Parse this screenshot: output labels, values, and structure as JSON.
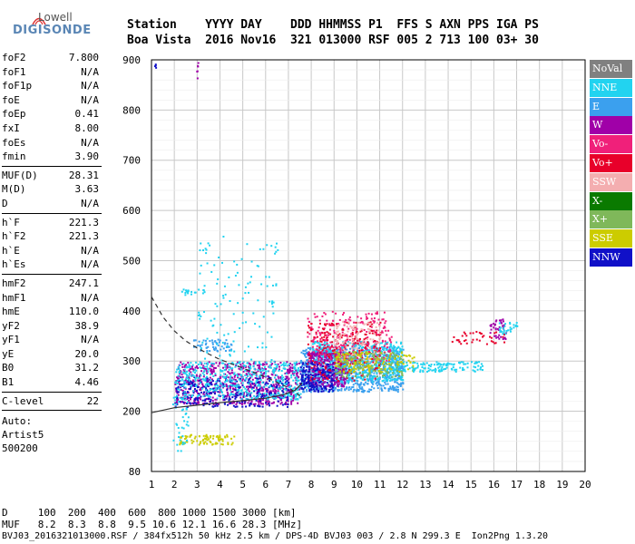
{
  "logo": {
    "line1": "Lowell",
    "line2": "DIGISONDE"
  },
  "header": {
    "row1": "Station    YYYY DAY    DDD HHMMSS P1  FFS S AXN PPS IGA PS",
    "row2": "Boa Vista  2016 Nov16  321 013000 RSF 005 2 713 100 03+ 30"
  },
  "params": {
    "group1": [
      {
        "name": "foF2",
        "value": "7.800"
      },
      {
        "name": "foF1",
        "value": "N/A"
      },
      {
        "name": "foF1p",
        "value": "N/A"
      },
      {
        "name": "foE",
        "value": "N/A"
      },
      {
        "name": "foEp",
        "value": "0.41"
      },
      {
        "name": "fxI",
        "value": "8.00"
      },
      {
        "name": "foEs",
        "value": "N/A"
      },
      {
        "name": "fmin",
        "value": "3.90"
      }
    ],
    "group2": [
      {
        "name": "MUF(D)",
        "value": "28.31"
      },
      {
        "name": "M(D)",
        "value": "3.63"
      },
      {
        "name": "D",
        "value": "N/A"
      }
    ],
    "group3": [
      {
        "name": "h`F",
        "value": "221.3"
      },
      {
        "name": "h`F2",
        "value": "221.3"
      },
      {
        "name": "h`E",
        "value": "N/A"
      },
      {
        "name": "h`Es",
        "value": "N/A"
      }
    ],
    "group4": [
      {
        "name": "hmF2",
        "value": "247.1"
      },
      {
        "name": "hmF1",
        "value": "N/A"
      },
      {
        "name": "hmE",
        "value": "110.0"
      },
      {
        "name": "yF2",
        "value": "38.9"
      },
      {
        "name": "yF1",
        "value": "N/A"
      },
      {
        "name": "yE",
        "value": "20.0"
      },
      {
        "name": "B0",
        "value": "31.2"
      },
      {
        "name": "B1",
        "value": "4.46"
      }
    ],
    "group5": [
      {
        "name": "C-level",
        "value": "22"
      }
    ],
    "auto_label": "Auto:",
    "auto_value": "Artist5",
    "auto_code": "500200"
  },
  "legend": [
    {
      "label": "NoVal",
      "color": "#808080"
    },
    {
      "label": "NNE",
      "color": "#22d3f0"
    },
    {
      "label": "E",
      "color": "#3ba0ee"
    },
    {
      "label": "W",
      "color": "#a000a8"
    },
    {
      "label": "Vo-",
      "color": "#f0207a"
    },
    {
      "label": "Vo+",
      "color": "#e8002a"
    },
    {
      "label": "SSW",
      "color": "#f4aeb0"
    },
    {
      "label": "X-",
      "color": "#0a7a00"
    },
    {
      "label": "X+",
      "color": "#7fb85a"
    },
    {
      "label": "SSE",
      "color": "#cccc00"
    },
    {
      "label": "NNW",
      "color": "#1010c8"
    }
  ],
  "footer": {
    "line1": "D     100  200  400  600  800 1000 1500 3000 [km]",
    "line2": "MUF   8.2  8.3  8.8  9.5 10.6 12.1 16.6 28.3 [MHz]",
    "line3": "BVJ03_2016321013000.RSF / 384fx512h 50 kHz 2.5 km / DPS-4D BVJ03 003 / 2.8 N 299.3 E  Ion2Png 1.3.20"
  },
  "chart_data": {
    "type": "scatter",
    "xlabel": "",
    "ylabel": "",
    "xlim": [
      1,
      20
    ],
    "ylim": [
      80,
      900
    ],
    "xticks": [
      1,
      2,
      3,
      4,
      5,
      6,
      7,
      8,
      9,
      10,
      11,
      12,
      13,
      14,
      15,
      16,
      17,
      18,
      19,
      20
    ],
    "yticks": [
      80,
      200,
      300,
      400,
      500,
      600,
      700,
      800,
      900
    ],
    "clusters": [
      {
        "series": "W",
        "xr": [
          2.0,
          7.5
        ],
        "yr": [
          215,
          300
        ],
        "n": 700
      },
      {
        "series": "NNW",
        "xr": [
          2.0,
          7.0
        ],
        "yr": [
          210,
          270
        ],
        "n": 300
      },
      {
        "series": "NNE",
        "xr": [
          2.0,
          7.5
        ],
        "yr": [
          225,
          300
        ],
        "n": 450
      },
      {
        "series": "E",
        "xr": [
          7.5,
          12.0
        ],
        "yr": [
          240,
          330
        ],
        "n": 900
      },
      {
        "series": "NNE",
        "xr": [
          8.0,
          12.0
        ],
        "yr": [
          260,
          340
        ],
        "n": 600
      },
      {
        "series": "W",
        "xr": [
          7.8,
          9.5
        ],
        "yr": [
          250,
          320
        ],
        "n": 260
      },
      {
        "series": "NNW",
        "xr": [
          7.5,
          9.0
        ],
        "yr": [
          240,
          300
        ],
        "n": 180
      },
      {
        "series": "Vo-",
        "xr": [
          7.8,
          11.5
        ],
        "yr": [
          300,
          400
        ],
        "n": 280
      },
      {
        "series": "Vo+",
        "xr": [
          7.8,
          11.0
        ],
        "yr": [
          260,
          380
        ],
        "n": 220
      },
      {
        "series": "SSW",
        "xr": [
          9.0,
          11.0
        ],
        "yr": [
          300,
          380
        ],
        "n": 120
      },
      {
        "series": "X+",
        "xr": [
          9.0,
          12.0
        ],
        "yr": [
          270,
          320
        ],
        "n": 160
      },
      {
        "series": "SSE",
        "xr": [
          9.0,
          12.5
        ],
        "yr": [
          280,
          320
        ],
        "n": 120
      },
      {
        "series": "NNE",
        "xr": [
          12.0,
          15.5
        ],
        "yr": [
          280,
          300
        ],
        "n": 120
      },
      {
        "series": "Vo+",
        "xr": [
          14.0,
          16.5
        ],
        "yr": [
          335,
          360
        ],
        "n": 40
      },
      {
        "series": "W",
        "xr": [
          15.8,
          16.5
        ],
        "yr": [
          345,
          385
        ],
        "n": 40
      },
      {
        "series": "NNE",
        "xr": [
          16.2,
          17.0
        ],
        "yr": [
          355,
          380
        ],
        "n": 30
      },
      {
        "series": "SSE",
        "xr": [
          2.2,
          4.6
        ],
        "yr": [
          135,
          155
        ],
        "n": 90
      },
      {
        "series": "NNE",
        "xr": [
          1.9,
          2.6
        ],
        "yr": [
          120,
          230
        ],
        "n": 40
      },
      {
        "series": "E",
        "xr": [
          2.8,
          4.5
        ],
        "yr": [
          320,
          345
        ],
        "n": 60
      },
      {
        "series": "NNE",
        "xr": [
          3.0,
          6.5
        ],
        "yr": [
          300,
          560
        ],
        "n": 120
      },
      {
        "series": "NNE",
        "xr": [
          2.3,
          3.5
        ],
        "yr": [
          430,
          445
        ],
        "n": 20
      },
      {
        "series": "W",
        "xr": [
          2.8,
          3.2
        ],
        "yr": [
          850,
          900
        ],
        "n": 6
      },
      {
        "series": "NNW",
        "xr": [
          1.0,
          1.2
        ],
        "yr": [
          880,
          895
        ],
        "n": 4
      }
    ],
    "lines": [
      {
        "name": "O-trace (solid)",
        "style": "solid",
        "points": [
          [
            1.0,
            197
          ],
          [
            2.0,
            207
          ],
          [
            3.0,
            212
          ],
          [
            4.0,
            217
          ],
          [
            5.0,
            221
          ],
          [
            6.0,
            226
          ],
          [
            6.8,
            233
          ],
          [
            7.3,
            242
          ],
          [
            7.6,
            256
          ]
        ]
      },
      {
        "name": "model (dashed)",
        "style": "dashed",
        "points": [
          [
            1.0,
            428
          ],
          [
            1.5,
            388
          ],
          [
            2.0,
            360
          ],
          [
            2.5,
            340
          ],
          [
            3.0,
            326
          ],
          [
            3.5,
            314
          ],
          [
            4.0,
            303
          ],
          [
            5.0,
            286
          ],
          [
            6.0,
            268
          ],
          [
            7.0,
            247
          ],
          [
            7.5,
            231
          ]
        ]
      }
    ]
  }
}
